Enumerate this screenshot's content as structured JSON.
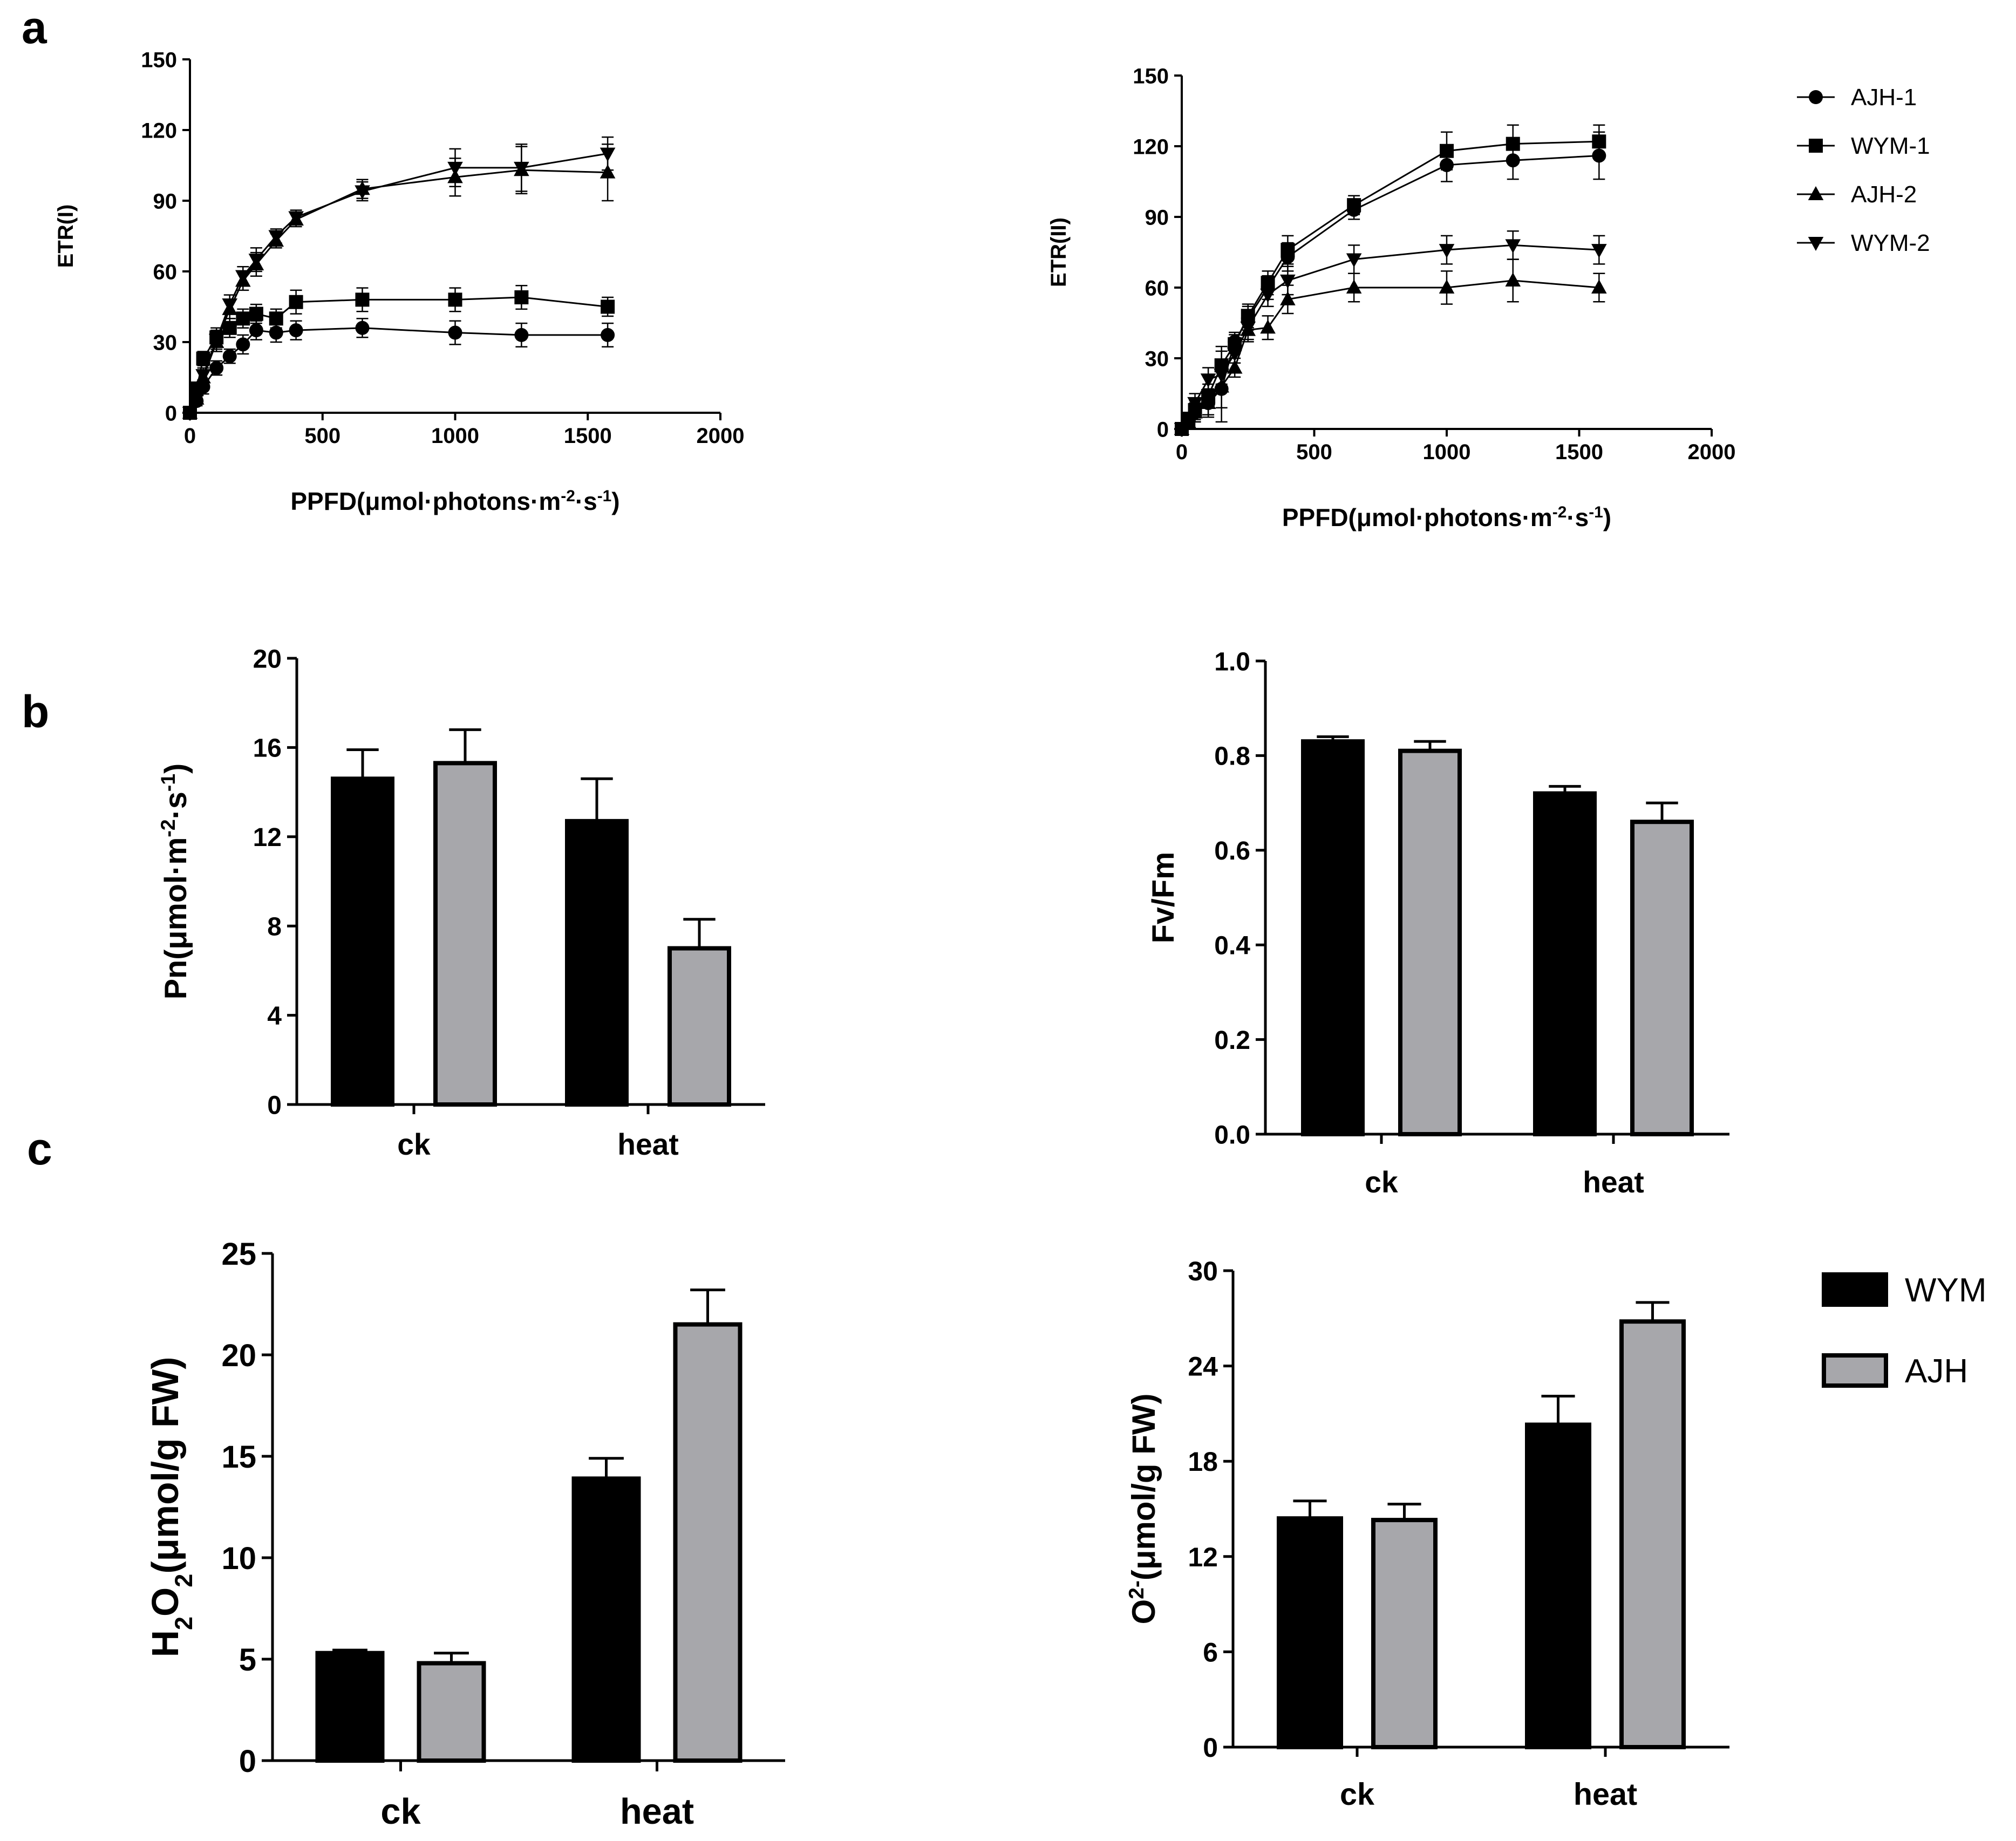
{
  "panel_labels": [
    "a",
    "b",
    "c"
  ],
  "colors": {
    "wym": "#000000",
    "ajh": "#a7a7ab",
    "axis": "#000000"
  },
  "legend_lines": [
    {
      "label": "AJH-1",
      "marker": "circle"
    },
    {
      "label": "WYM-1",
      "marker": "square"
    },
    {
      "label": "AJH-2",
      "marker": "triangle-up"
    },
    {
      "label": "WYM-2",
      "marker": "triangle-down"
    }
  ],
  "legend_bars": [
    {
      "label": "WYM",
      "color": "#000000"
    },
    {
      "label": "AJH",
      "color": "#a7a7ab"
    }
  ],
  "chart_data": [
    {
      "id": "etr1",
      "type": "line",
      "ylabel": "ETR(I)",
      "xlabel": {
        "base": "PPFD(μmol·photons·m",
        "sup1": "-2",
        "mid": "·s",
        "sup2": "-1",
        "end": ")"
      },
      "xlim": [
        0,
        2000
      ],
      "xticks": [
        0,
        500,
        1000,
        1500,
        2000
      ],
      "ylim": [
        0,
        150
      ],
      "yticks": [
        0,
        30,
        60,
        90,
        120,
        150
      ],
      "x": [
        0,
        25,
        50,
        100,
        150,
        200,
        250,
        325,
        400,
        650,
        1000,
        1250,
        1575
      ],
      "series": [
        {
          "name": "AJH-1",
          "marker": "circle",
          "values": [
            0,
            5,
            11,
            19,
            24,
            29,
            35,
            34,
            35,
            36,
            34,
            33,
            33
          ],
          "err": [
            1,
            2,
            3,
            3,
            3,
            4,
            4,
            4,
            4,
            4,
            5,
            5,
            5
          ]
        },
        {
          "name": "WYM-1",
          "marker": "square",
          "values": [
            0,
            10,
            23,
            32,
            36,
            40,
            42,
            40,
            47,
            48,
            48,
            49,
            45
          ],
          "err": [
            1,
            3,
            3,
            4,
            4,
            4,
            4,
            4,
            5,
            5,
            5,
            5,
            4
          ]
        },
        {
          "name": "AJH-2",
          "marker": "triangle-up",
          "values": [
            0,
            6,
            15,
            30,
            44,
            56,
            63,
            73,
            82,
            95,
            100,
            103,
            102
          ],
          "err": [
            1,
            3,
            3,
            4,
            4,
            4,
            5,
            3,
            3,
            4,
            8,
            10,
            12
          ]
        },
        {
          "name": "WYM-2",
          "marker": "triangle-down",
          "values": [
            0,
            7,
            16,
            31,
            46,
            58,
            65,
            75,
            83,
            94,
            104,
            104,
            110
          ],
          "err": [
            1,
            3,
            3,
            4,
            4,
            4,
            5,
            3,
            3,
            4,
            8,
            10,
            7
          ]
        }
      ]
    },
    {
      "id": "etr2",
      "type": "line",
      "ylabel": "ETR(II)",
      "xlabel": {
        "base": "PPFD(μmol·photons·m",
        "sup1": "-2",
        "mid": "·s",
        "sup2": "-1",
        "end": ")"
      },
      "xlim": [
        0,
        2000
      ],
      "xticks": [
        0,
        500,
        1000,
        1500,
        2000
      ],
      "ylim": [
        0,
        150
      ],
      "yticks": [
        0,
        30,
        60,
        90,
        120,
        150
      ],
      "x": [
        0,
        25,
        50,
        100,
        150,
        200,
        250,
        325,
        400,
        650,
        1000,
        1250,
        1575
      ],
      "series": [
        {
          "name": "AJH-1",
          "marker": "circle",
          "values": [
            0,
            3,
            7,
            11,
            17,
            37,
            47,
            60,
            73,
            93,
            112,
            114,
            116
          ],
          "err": [
            1,
            3,
            4,
            5,
            8,
            4,
            5,
            5,
            6,
            4,
            7,
            8,
            10
          ]
        },
        {
          "name": "WYM-1",
          "marker": "square",
          "values": [
            0,
            4,
            8,
            14,
            27,
            36,
            48,
            62,
            76,
            95,
            118,
            121,
            122
          ],
          "err": [
            1,
            3,
            4,
            5,
            8,
            4,
            5,
            5,
            6,
            4,
            8,
            8,
            7
          ]
        },
        {
          "name": "AJH-2",
          "marker": "triangle-up",
          "values": [
            0,
            3,
            7,
            11,
            18,
            26,
            42,
            43,
            55,
            60,
            60,
            63,
            60
          ],
          "err": [
            1,
            3,
            4,
            6,
            15,
            4,
            5,
            5,
            6,
            6,
            7,
            9,
            6
          ]
        },
        {
          "name": "WYM-2",
          "marker": "triangle-down",
          "values": [
            0,
            4,
            11,
            21,
            23,
            32,
            43,
            57,
            63,
            72,
            76,
            78,
            76
          ],
          "err": [
            1,
            3,
            4,
            5,
            6,
            4,
            5,
            5,
            6,
            6,
            6,
            6,
            6
          ]
        }
      ],
      "legend": "top-right"
    },
    {
      "id": "pn",
      "type": "bar",
      "ylabel": {
        "base": "Pn(μmol·m",
        "sup1": "-2",
        "mid": "·s",
        "sup2": "-1",
        "end": ")"
      },
      "categories": [
        "ck",
        "heat"
      ],
      "ylim": [
        0,
        20
      ],
      "yticks": [
        0,
        4,
        8,
        12,
        16,
        20
      ],
      "series": [
        {
          "name": "WYM",
          "values": [
            14.6,
            12.7
          ],
          "err": [
            1.3,
            1.9
          ]
        },
        {
          "name": "AJH",
          "values": [
            15.3,
            7.0
          ],
          "err": [
            1.5,
            1.3
          ]
        }
      ]
    },
    {
      "id": "fvfm",
      "type": "bar",
      "ylabel": "Fv/Fm",
      "categories": [
        "ck",
        "heat"
      ],
      "ylim": [
        0,
        1.0
      ],
      "yticks": [
        "0.0",
        "0.2",
        "0.4",
        "0.6",
        "0.8",
        "1.0"
      ],
      "series": [
        {
          "name": "WYM",
          "values": [
            0.83,
            0.72
          ],
          "err": [
            0.01,
            0.015
          ]
        },
        {
          "name": "AJH",
          "values": [
            0.81,
            0.66
          ],
          "err": [
            0.02,
            0.04
          ]
        }
      ]
    },
    {
      "id": "h2o2",
      "type": "bar",
      "ylabel": {
        "a": "H",
        "sub1": "2",
        "b": "O",
        "sub2": "2",
        "c": "(μmol/g FW)"
      },
      "categories": [
        "ck",
        "heat"
      ],
      "ylim": [
        0,
        25
      ],
      "yticks": [
        0,
        5,
        10,
        15,
        20,
        25
      ],
      "series": [
        {
          "name": "WYM",
          "values": [
            5.3,
            13.9
          ],
          "err": [
            0.15,
            1.0
          ]
        },
        {
          "name": "AJH",
          "values": [
            4.8,
            21.5
          ],
          "err": [
            0.5,
            1.7
          ]
        }
      ],
      "legend": "right"
    },
    {
      "id": "o2",
      "type": "bar",
      "ylabel": {
        "a": "O",
        "sup": "2-",
        "b": "(μmol/g FW)"
      },
      "categories": [
        "ck",
        "heat"
      ],
      "ylim": [
        0,
        30
      ],
      "yticks": [
        0,
        6,
        12,
        18,
        24,
        30
      ],
      "series": [
        {
          "name": "WYM",
          "values": [
            14.4,
            20.3
          ],
          "err": [
            1.1,
            1.8
          ]
        },
        {
          "name": "AJH",
          "values": [
            14.3,
            26.8
          ],
          "err": [
            1.0,
            1.2
          ]
        }
      ]
    }
  ]
}
